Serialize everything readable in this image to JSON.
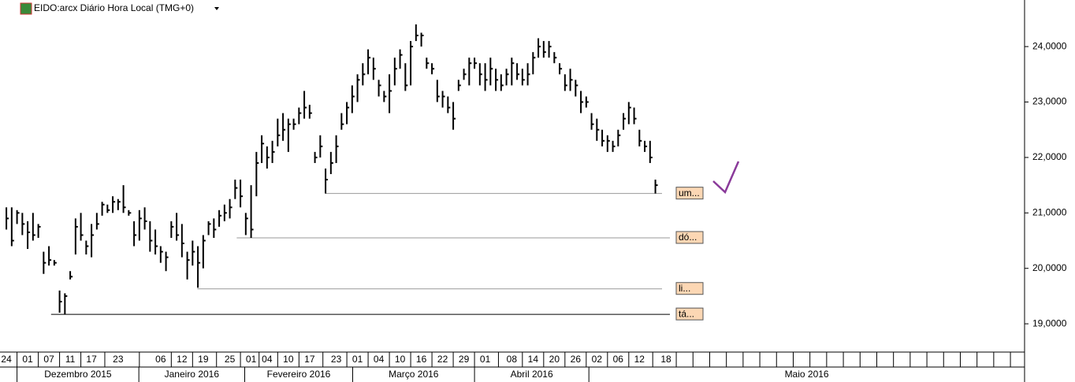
{
  "chart_data": {
    "type": "ohlc",
    "title": "EIDO:arcx Diário Hora Local (TMG+0)",
    "high": [
      21.1,
      21.1,
      21.05,
      21.0,
      20.85,
      21.0,
      20.8,
      20.3,
      20.4,
      20.15,
      19.6,
      19.55,
      19.95,
      20.9,
      21.0,
      20.5,
      20.8,
      21.0,
      21.2,
      21.15,
      21.3,
      21.25,
      21.5,
      21.05,
      20.85,
      21.05,
      21.1,
      20.85,
      20.7,
      20.4,
      20.3,
      20.85,
      21.0,
      20.8,
      20.3,
      20.5,
      20.4,
      20.6,
      20.85,
      20.9,
      21.05,
      21.15,
      21.25,
      21.6,
      21.6,
      21.0,
      21.5,
      22.1,
      22.4,
      22.2,
      22.3,
      22.7,
      22.8,
      22.7,
      22.7,
      22.9,
      23.2,
      22.95,
      22.1,
      22.4,
      21.8,
      22.1,
      22.4,
      22.8,
      23.0,
      23.3,
      23.5,
      23.7,
      23.95,
      23.8,
      23.4,
      23.2,
      23.5,
      23.8,
      23.95,
      23.7,
      24.1,
      24.4,
      24.25,
      23.8,
      23.7,
      23.4,
      23.2,
      23.1,
      23.0,
      23.4,
      23.6,
      23.8,
      23.8,
      23.7,
      23.7,
      23.8,
      23.6,
      23.5,
      23.6,
      23.8,
      23.7,
      23.6,
      23.7,
      23.9,
      24.15,
      24.1,
      24.1,
      23.9,
      23.7,
      23.5,
      23.6,
      23.4,
      23.2,
      23.1,
      22.8,
      22.7,
      22.5,
      22.4,
      22.3,
      22.5,
      22.8,
      23.0,
      22.9,
      22.5,
      22.3,
      22.3,
      21.6
    ],
    "low": [
      20.7,
      20.4,
      20.8,
      20.6,
      20.35,
      20.5,
      20.55,
      19.9,
      20.05,
      20.05,
      19.2,
      19.17,
      19.8,
      20.25,
      20.5,
      20.25,
      20.2,
      20.7,
      20.95,
      21.0,
      21.0,
      21.05,
      21.0,
      20.95,
      20.4,
      20.5,
      20.7,
      20.3,
      20.25,
      20.1,
      19.95,
      20.55,
      20.5,
      20.2,
      19.8,
      20.05,
      19.65,
      20.0,
      20.6,
      20.55,
      20.75,
      20.85,
      20.9,
      21.25,
      21.1,
      20.6,
      20.55,
      21.3,
      21.9,
      21.8,
      21.9,
      22.2,
      22.3,
      22.1,
      22.5,
      22.6,
      22.7,
      22.7,
      21.9,
      22.0,
      21.35,
      21.7,
      21.9,
      22.5,
      22.6,
      22.8,
      23.0,
      23.3,
      23.5,
      23.4,
      23.1,
      23.0,
      22.8,
      23.3,
      23.6,
      23.2,
      23.3,
      24.1,
      24.0,
      23.6,
      23.5,
      23.0,
      22.9,
      22.8,
      22.5,
      23.2,
      23.4,
      23.3,
      23.6,
      23.3,
      23.2,
      23.3,
      23.2,
      23.2,
      23.3,
      23.3,
      23.4,
      23.3,
      23.3,
      23.5,
      23.8,
      23.8,
      23.8,
      23.7,
      23.5,
      23.2,
      23.2,
      23.1,
      22.8,
      22.9,
      22.5,
      22.3,
      22.2,
      22.1,
      22.1,
      22.2,
      22.5,
      22.6,
      22.6,
      22.2,
      22.1,
      21.9,
      21.35
    ],
    "close": [
      20.9,
      20.5,
      21.0,
      20.8,
      20.65,
      20.6,
      20.75,
      20.1,
      20.15,
      20.1,
      19.4,
      19.5,
      19.85,
      20.75,
      20.6,
      20.4,
      20.6,
      20.8,
      21.15,
      21.05,
      21.2,
      21.2,
      21.1,
      21.0,
      20.6,
      20.9,
      20.85,
      20.5,
      20.4,
      20.3,
      20.2,
      20.75,
      20.6,
      20.45,
      20.15,
      20.3,
      20.1,
      20.5,
      20.8,
      20.7,
      20.95,
      21.0,
      21.1,
      21.45,
      21.3,
      20.9,
      20.7,
      21.9,
      22.25,
      22.0,
      22.1,
      22.4,
      22.5,
      22.6,
      22.6,
      22.8,
      22.9,
      22.8,
      22.0,
      22.2,
      21.6,
      21.9,
      22.2,
      22.6,
      22.9,
      23.1,
      23.4,
      23.5,
      23.8,
      23.6,
      23.3,
      23.1,
      23.2,
      23.6,
      23.85,
      23.3,
      24.0,
      24.2,
      24.2,
      23.7,
      23.6,
      23.1,
      23.1,
      22.9,
      22.7,
      23.3,
      23.5,
      23.7,
      23.7,
      23.5,
      23.4,
      23.6,
      23.4,
      23.3,
      23.5,
      23.7,
      23.5,
      23.4,
      23.5,
      23.8,
      24.0,
      23.9,
      24.0,
      23.8,
      23.6,
      23.3,
      23.4,
      23.3,
      23.0,
      23.0,
      22.6,
      22.5,
      22.3,
      22.3,
      22.2,
      22.4,
      22.7,
      22.9,
      22.7,
      22.3,
      22.2,
      22.0,
      21.5
    ],
    "xlim": [
      -1.2,
      191.4
    ],
    "xticks": [
      {
        "value": 0,
        "label": "24"
      },
      {
        "value": 4,
        "label": "01"
      },
      {
        "value": 8,
        "label": "07"
      },
      {
        "value": 12,
        "label": "11"
      },
      {
        "value": 16,
        "label": "17"
      },
      {
        "value": 21,
        "label": "23"
      },
      {
        "value": 29,
        "label": "06"
      },
      {
        "value": 33,
        "label": "12"
      },
      {
        "value": 37,
        "label": "19"
      },
      {
        "value": 42,
        "label": "25"
      },
      {
        "value": 46,
        "label": "01"
      },
      {
        "value": 49,
        "label": "04"
      },
      {
        "value": 53,
        "label": "10"
      },
      {
        "value": 57,
        "label": "17"
      },
      {
        "value": 62,
        "label": "23"
      },
      {
        "value": 66,
        "label": "01"
      },
      {
        "value": 70,
        "label": "04"
      },
      {
        "value": 74,
        "label": "10"
      },
      {
        "value": 78,
        "label": "16"
      },
      {
        "value": 82,
        "label": "22"
      },
      {
        "value": 86,
        "label": "29"
      },
      {
        "value": 90,
        "label": "01"
      },
      {
        "value": 95,
        "label": "08"
      },
      {
        "value": 99,
        "label": "14"
      },
      {
        "value": 103,
        "label": "20"
      },
      {
        "value": 107,
        "label": "26"
      },
      {
        "value": 111,
        "label": "02"
      },
      {
        "value": 115,
        "label": "06"
      },
      {
        "value": 119,
        "label": "12"
      },
      {
        "value": 124,
        "label": "18"
      }
    ],
    "months": [
      {
        "value": 2,
        "label": "Dezembro 2015"
      },
      {
        "value": 24.9,
        "label": "Janeiro 2016"
      },
      {
        "value": 44.8,
        "label": "Fevereiro 2016"
      },
      {
        "value": 65.1,
        "label": "Março 2016"
      },
      {
        "value": 88,
        "label": "Abril 2016"
      },
      {
        "value": 109.5,
        "label": "Maio 2016"
      }
    ],
    "ylim": [
      18.49,
      24.84
    ],
    "yticks": [
      {
        "value": 19,
        "label": "19,0000"
      },
      {
        "value": 20,
        "label": "20,0000"
      },
      {
        "value": 21,
        "label": "21,0000"
      },
      {
        "value": 22,
        "label": "22,0000"
      },
      {
        "value": 23,
        "label": "23,0000"
      },
      {
        "value": 24,
        "label": "24,0000"
      }
    ],
    "annotations": [
      {
        "label": "um...",
        "value": 21.35,
        "from": 60
      },
      {
        "label": "dó...",
        "value": 20.55,
        "from": 43.3
      },
      {
        "label": "li...",
        "value": 19.63,
        "from": 35.9
      },
      {
        "label": "tá...",
        "value": 19.17,
        "from": 8.4
      }
    ]
  }
}
